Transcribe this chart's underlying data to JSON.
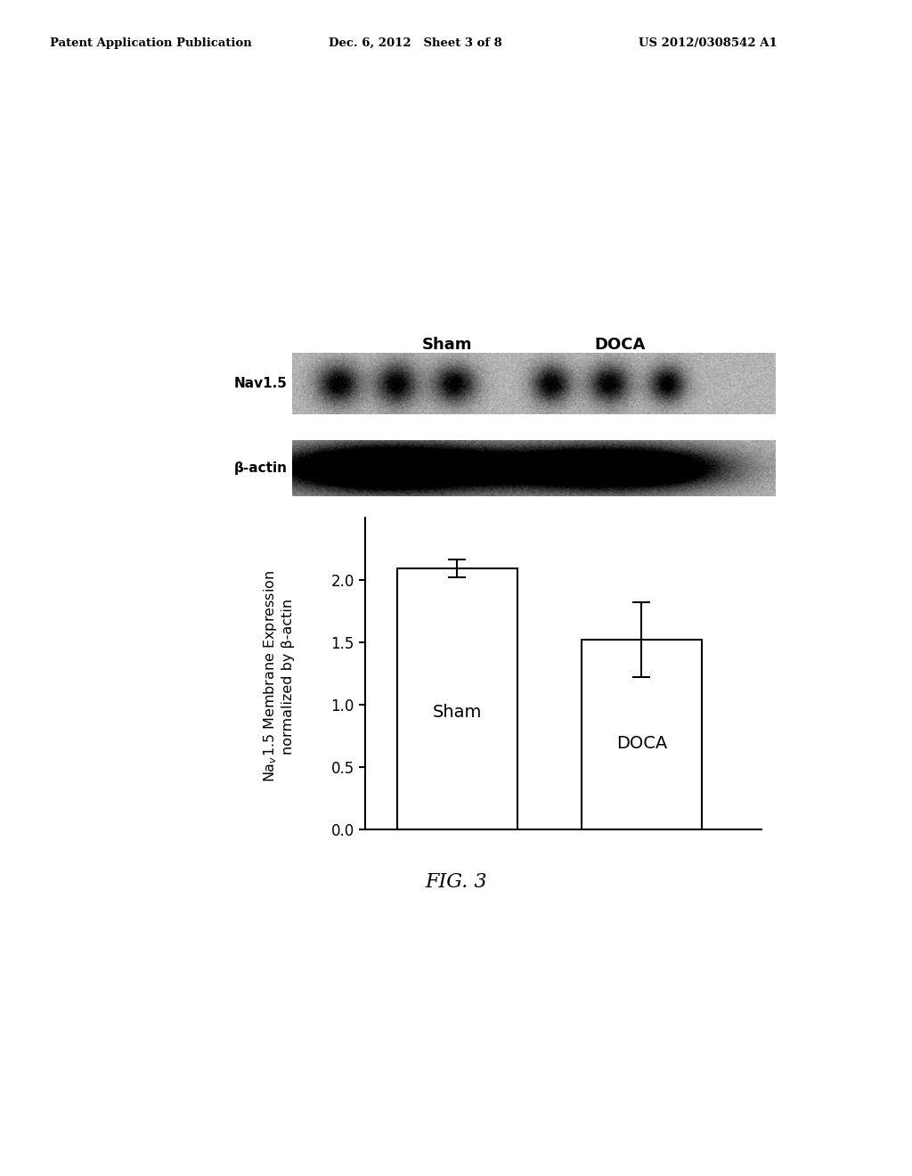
{
  "header_left": "Patent Application Publication",
  "header_mid": "Dec. 6, 2012   Sheet 3 of 8",
  "header_right": "US 2012/0308542 A1",
  "figure_label": "FIG. 3",
  "blot_labels": [
    "Nav1.5",
    "β-actin"
  ],
  "blot_header_sham": "Sham",
  "blot_header_doca": "DOCA",
  "bar_values": [
    2.09,
    1.52
  ],
  "bar_errors": [
    0.07,
    0.3
  ],
  "bar_labels": [
    "Sham",
    "DOCA"
  ],
  "bar_color": "#ffffff",
  "bar_edge_color": "#000000",
  "ylim": [
    0.0,
    2.5
  ],
  "yticks": [
    0.0,
    0.5,
    1.0,
    1.5,
    2.0
  ],
  "background_color": "#ffffff",
  "nav15_spots_x": [
    0.095,
    0.215,
    0.335,
    0.535,
    0.655,
    0.775
  ],
  "nav15_spot_widths": [
    0.1,
    0.095,
    0.1,
    0.09,
    0.095,
    0.085
  ],
  "nav15_spot_heights": [
    0.75,
    0.78,
    0.72,
    0.7,
    0.72,
    0.68
  ],
  "actin_spots_x": [
    0.09,
    0.21,
    0.33,
    0.535,
    0.655,
    0.775
  ],
  "actin_band_heights": [
    0.8,
    0.82,
    0.8,
    0.75,
    0.78,
    0.75
  ],
  "blot_bg_color": "#b5b5b5",
  "spot_color_dark": "#151515",
  "spot_color_mid": "#282828"
}
